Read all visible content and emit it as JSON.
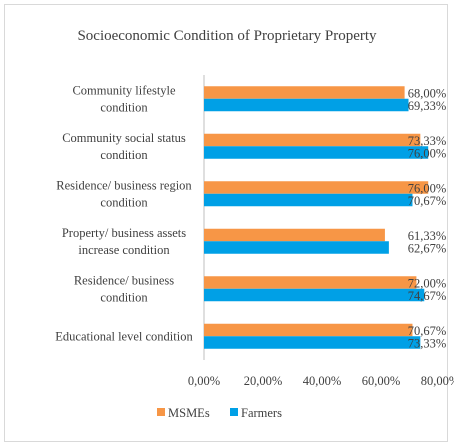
{
  "chart_data": {
    "type": "bar",
    "orientation": "horizontal",
    "title": "Socioeconomic Condition of Proprietary Property",
    "categories": [
      [
        "Community lifestyle",
        "condition"
      ],
      [
        "Community social status",
        "condition"
      ],
      [
        "Residence/ business region",
        "condition"
      ],
      [
        "Property/ business assets",
        "increase condition"
      ],
      [
        "Residence/ business",
        "condition"
      ],
      [
        "Educational level condition"
      ]
    ],
    "series": [
      {
        "name": "MSMEs",
        "color": "#f79646",
        "values": [
          68.0,
          73.33,
          76.0,
          61.33,
          72.0,
          70.67
        ],
        "labels": [
          "68,00%",
          "73,33%",
          "76,00%",
          "61,33%",
          "72,00%",
          "70,67%"
        ]
      },
      {
        "name": "Farmers",
        "color": "#00a0e6",
        "values": [
          69.33,
          76.0,
          70.67,
          62.67,
          74.67,
          73.33
        ],
        "labels": [
          "69,33%",
          "76,00%",
          "70,67%",
          "62,67%",
          "74,67%",
          "73,33%"
        ]
      }
    ],
    "xlim": [
      0,
      80
    ],
    "xticks": [
      0,
      20,
      40,
      60,
      80
    ],
    "xtick_labels": [
      "0,00%",
      "20,00%",
      "40,00%",
      "60,00%",
      "80,00%"
    ],
    "legend_position": "bottom",
    "grid": false,
    "xlabel": "",
    "ylabel": ""
  }
}
